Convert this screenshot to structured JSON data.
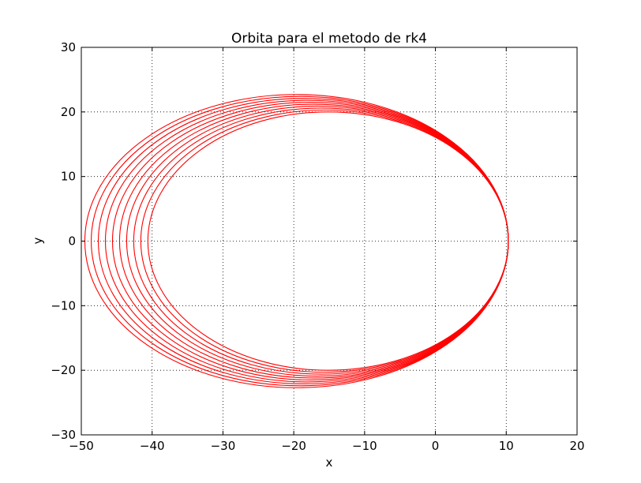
{
  "chart_data": {
    "type": "line",
    "title": "Orbita para el metodo de rk4",
    "xlabel": "x",
    "ylabel": "y",
    "xlim": [
      -50,
      20
    ],
    "ylim": [
      -30,
      30
    ],
    "xticks": [
      -50,
      -40,
      -30,
      -20,
      -10,
      0,
      10,
      20
    ],
    "yticks": [
      -30,
      -20,
      -10,
      0,
      10,
      20,
      30
    ],
    "xtick_labels": [
      "−50",
      "−40",
      "−30",
      "−20",
      "−10",
      "0",
      "10",
      "20"
    ],
    "ytick_labels": [
      "−30",
      "−20",
      "−10",
      "0",
      "10",
      "20",
      "30"
    ],
    "grid": true,
    "grid_style": "dotted",
    "line_color": "#ff0000",
    "orbit": {
      "perihelion_x": 10.3,
      "orbits": [
        {
          "left_x": -40.6,
          "y_max": 20.0
        },
        {
          "left_x": -41.6,
          "y_max": 20.3
        },
        {
          "left_x": -42.6,
          "y_max": 20.6
        },
        {
          "left_x": -43.6,
          "y_max": 20.9
        },
        {
          "left_x": -44.6,
          "y_max": 21.2
        },
        {
          "left_x": -45.6,
          "y_max": 21.5
        },
        {
          "left_x": -46.6,
          "y_max": 21.8
        },
        {
          "left_x": -47.6,
          "y_max": 22.1
        },
        {
          "left_x": -48.6,
          "y_max": 22.4
        },
        {
          "left_x": -49.5,
          "y_max": 22.7
        }
      ]
    }
  }
}
